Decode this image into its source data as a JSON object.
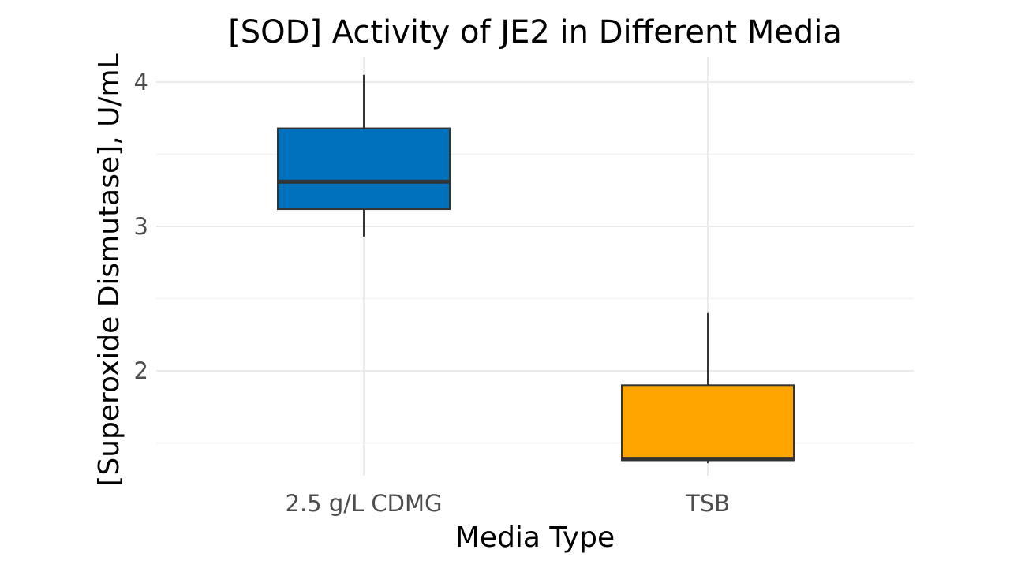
{
  "chart_data": {
    "type": "box",
    "title": "[SOD] Activity of JE2 in Different Media",
    "xlabel": "Media Type",
    "ylabel": "[Superoxide Dismutase], U/mL",
    "categories": [
      "2.5 g/L CDMG",
      "TSB"
    ],
    "boxes": [
      {
        "category": "2.5 g/L CDMG",
        "min": 2.93,
        "q1": 3.12,
        "median": 3.31,
        "q3": 3.68,
        "max": 4.05,
        "color": "#0072BD"
      },
      {
        "category": "TSB",
        "min": 1.36,
        "q1": 1.38,
        "median": 1.39,
        "q3": 1.9,
        "max": 2.4,
        "color": "#FFA500"
      }
    ],
    "ylim": [
      1.3,
      4.18
    ],
    "y_ticks": [
      2,
      3,
      4
    ],
    "y_minor_ticks": [
      1.5,
      2.5,
      3.5
    ],
    "grid": true,
    "legend": "none"
  }
}
